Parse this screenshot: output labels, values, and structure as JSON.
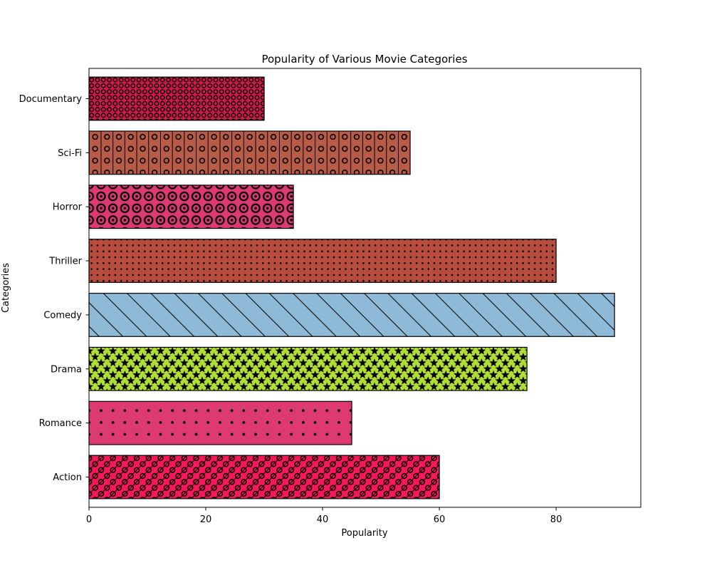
{
  "chart_data": {
    "type": "bar",
    "orientation": "horizontal",
    "title": "Popularity of Various Movie Categories",
    "xlabel": "Popularity",
    "ylabel": "Categories",
    "xlim": [
      0,
      94.5
    ],
    "xticks": [
      0,
      20,
      40,
      60,
      80
    ],
    "grid": false,
    "categories": [
      "Action",
      "Romance",
      "Drama",
      "Comedy",
      "Thriller",
      "Horror",
      "Sci-Fi",
      "Documentary"
    ],
    "values": [
      60,
      45,
      75,
      90,
      80,
      35,
      55,
      30
    ],
    "colors": [
      "#f7175a",
      "#dd3a73",
      "#b0de35",
      "#8fbad7",
      "#b84d3d",
      "#dd3a73",
      "#b85b47",
      "#d11a4a"
    ],
    "hatches": [
      "o/",
      ".",
      "*",
      "\\",
      "..",
      "O",
      "o|",
      "oo"
    ]
  }
}
